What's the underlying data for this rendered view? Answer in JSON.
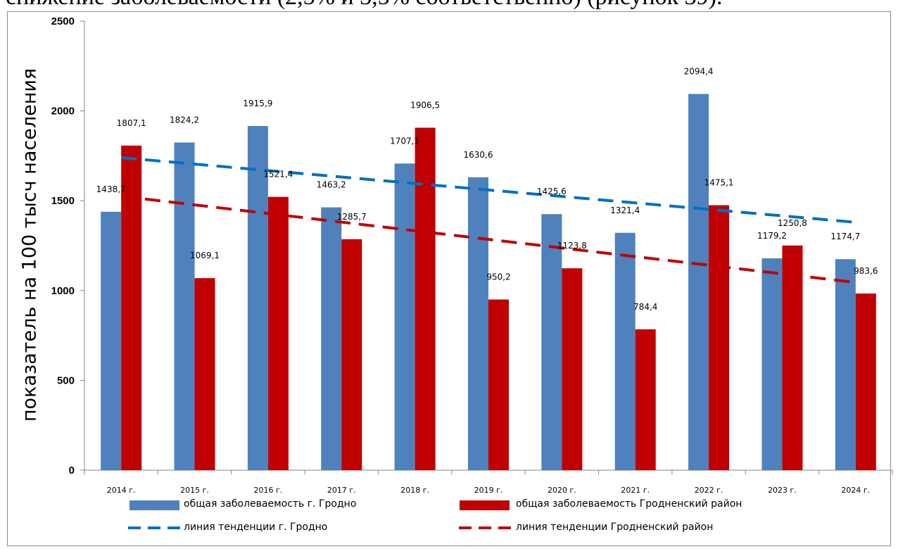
{
  "page_text": {
    "top_line": "снижение заболеваемости (2,5% и 3,5% соответственно) (рисунок 39)."
  },
  "colors": {
    "series1": "#4f81bd",
    "series2": "#c00000",
    "trend1": "#0070c0",
    "trend2": "#c00000",
    "axis": "#868686"
  },
  "chart_data": {
    "type": "bar",
    "ylabel": "показатель на 100 тысч населения",
    "xlabel": "",
    "ylim": [
      0,
      2500
    ],
    "yticks": [
      0,
      500,
      1000,
      1500,
      2000,
      2500
    ],
    "grid": false,
    "legend_position": "bottom",
    "categories": [
      "2014 г.",
      "2015 г.",
      "2016 г.",
      "2017 г.",
      "2018 г.",
      "2019 г.",
      "2020 г.",
      "2021 г.",
      "2022 г.",
      "2023 г.",
      "2024 г."
    ],
    "series": [
      {
        "name": "общая заболеваемость г. Гродно",
        "values": [
          1438.7,
          1824.2,
          1915.9,
          1463.2,
          1707.1,
          1630.6,
          1425.6,
          1321.4,
          2094.4,
          1179.2,
          1174.7
        ],
        "labels": [
          "1438,7",
          "1824,2",
          "1915,9",
          "1463,2",
          "1707,1",
          "1630,6",
          "1425,6",
          "1321,4",
          "2094,4",
          "1179,2",
          "1174,7"
        ]
      },
      {
        "name": "общая заболеваемость Гродненский район",
        "values": [
          1807.1,
          1069.1,
          1521.4,
          1285.7,
          1906.5,
          950.2,
          1123.8,
          784.4,
          1475.1,
          1250.8,
          983.6
        ],
        "labels": [
          "1807,1",
          "1069,1",
          "1521,4",
          "1285,7",
          "1906,5",
          "950,2",
          "1123,8",
          "784,4",
          "1475,1",
          "1250,8",
          "983,6"
        ]
      }
    ],
    "trendlines": [
      {
        "name": "линия тенденции г. Гродно",
        "start": 1740,
        "end": 1380
      },
      {
        "name": "линия тенденции Гродненский район",
        "start": 1525,
        "end": 1045
      }
    ]
  }
}
